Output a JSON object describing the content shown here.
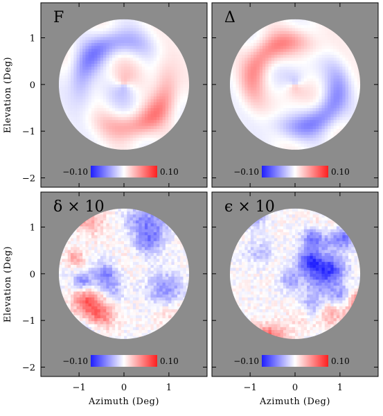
{
  "chart_data": [
    {
      "type": "heatmap",
      "title": "F",
      "pattern": "ring",
      "ring_phase": 0.0,
      "ylabel": "Elevation (Deg)",
      "xlabel": "",
      "xlim": [
        -1.85,
        1.85
      ],
      "ylim": [
        -2.2,
        1.75
      ],
      "colorbar": {
        "min": -0.1,
        "max": 0.1,
        "min_label": "−0.10",
        "max_label": "0.10"
      }
    },
    {
      "type": "heatmap",
      "title": "Δ",
      "pattern": "ring",
      "ring_phase": 3.1416,
      "ylabel": "",
      "xlabel": "",
      "xlim": [
        -1.85,
        1.85
      ],
      "ylim": [
        -2.2,
        1.75
      ],
      "colorbar": {
        "min": -0.1,
        "max": 0.1,
        "min_label": "−0.10",
        "max_label": "0.10"
      }
    },
    {
      "type": "heatmap",
      "title": "δ × 10",
      "pattern": "noise",
      "seed": 7,
      "ylabel": "Elevation (Deg)",
      "xlabel": "Azimuth (Deg)",
      "xlim": [
        -1.85,
        1.85
      ],
      "ylim": [
        -2.2,
        1.75
      ],
      "colorbar": {
        "min": -0.1,
        "max": 0.1,
        "min_label": "−0.10",
        "max_label": "0.10"
      }
    },
    {
      "type": "heatmap",
      "title": "ϵ × 10",
      "pattern": "noise",
      "seed": 19,
      "ylabel": "",
      "xlabel": "Azimuth (Deg)",
      "xlim": [
        -1.85,
        1.85
      ],
      "ylim": [
        -2.2,
        1.75
      ],
      "colorbar": {
        "min": -0.1,
        "max": 0.1,
        "min_label": "−0.10",
        "max_label": "0.10"
      }
    }
  ],
  "axes": {
    "yticks": [
      1,
      0,
      -1,
      -2
    ],
    "ytick_labels": [
      "1",
      "0",
      "−1",
      "−2"
    ],
    "xticks": [
      -1,
      0,
      1
    ],
    "xtick_labels": [
      "−1",
      "0",
      "1"
    ],
    "disk_radius_deg": 1.45
  },
  "colors": {
    "background": "#8c8c8c",
    "low": "#1f1fff",
    "mid": "#ffffff",
    "high": "#ff1f1f"
  }
}
